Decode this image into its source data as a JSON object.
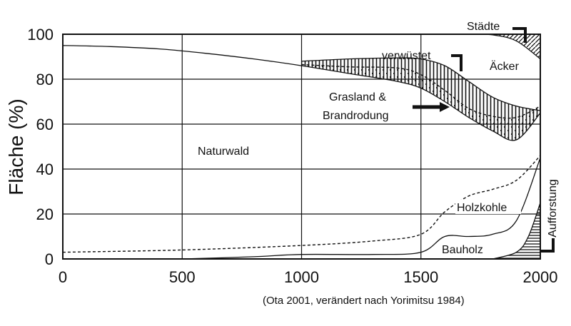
{
  "chart_data": {
    "type": "area",
    "ylabel": "Fläche (%)",
    "xlabel": "",
    "xlim": [
      0,
      2000
    ],
    "ylim": [
      0,
      100
    ],
    "x_ticks": [
      "0",
      "500",
      "1000",
      "1500",
      "2000"
    ],
    "y_ticks": [
      "0",
      "20",
      "40",
      "60",
      "80",
      "100"
    ],
    "grid": true,
    "source_note": "(Ota 2001, verändert nach Yorimitsu 1984)",
    "series": [
      {
        "name": "Naturwald",
        "x": [
          0,
          200,
          400,
          600,
          800,
          1000,
          1200,
          1400,
          1500,
          1600,
          1700,
          1800,
          1900,
          2000
        ],
        "values": [
          95,
          94.5,
          93.5,
          91.5,
          89,
          86,
          82.5,
          79,
          76,
          70,
          63,
          57,
          53,
          65
        ]
      },
      {
        "name": "Grasland & Brandrodung",
        "x": [
          1000,
          1200,
          1400,
          1500,
          1600,
          1700,
          1800,
          1900,
          2000
        ],
        "values": [
          86.5,
          85.5,
          85,
          82,
          75,
          67,
          63.5,
          63,
          68
        ]
      },
      {
        "name": "verwüstet",
        "x": [
          0,
          200,
          400,
          600,
          800,
          1000,
          1200,
          1400,
          1500,
          1600,
          1700,
          1800,
          1900,
          2000
        ],
        "values": [
          95,
          94.5,
          93.5,
          91.5,
          89,
          88,
          89,
          89.5,
          89,
          86,
          79,
          72,
          68,
          66
        ]
      },
      {
        "name": "Äcker",
        "x": [
          1000,
          1200,
          1400,
          1500,
          1600,
          1700,
          1800,
          1900,
          2000
        ],
        "values": [
          100,
          100,
          100,
          100,
          100,
          100,
          100,
          99,
          96
        ]
      },
      {
        "name": "Städte",
        "x": [
          1800,
          1900,
          2000
        ],
        "values": [
          100,
          100,
          100
        ]
      },
      {
        "name": "Holzkohle",
        "x": [
          0,
          500,
          1000,
          1300,
          1500,
          1600,
          1700,
          1800,
          1900,
          2000
        ],
        "values": [
          3,
          4,
          6,
          8,
          11,
          21,
          28,
          31,
          35,
          46
        ]
      },
      {
        "name": "Bauholz",
        "x": [
          500,
          800,
          1000,
          1300,
          1500,
          1600,
          1700,
          1800,
          1900,
          2000
        ],
        "values": [
          0,
          1,
          2,
          2,
          3,
          10,
          10,
          11,
          17,
          45
        ]
      },
      {
        "name": "Aufforstung",
        "x": [
          1800,
          1900,
          1950,
          2000
        ],
        "values": [
          0,
          3,
          10,
          25
        ]
      }
    ],
    "annotations": [
      "Städte",
      "verwüstet",
      "Äcker",
      "Grasland &",
      "Brandrodung",
      "Naturwald",
      "Holzkohle",
      "Bauholz",
      "Aufforstung"
    ]
  }
}
